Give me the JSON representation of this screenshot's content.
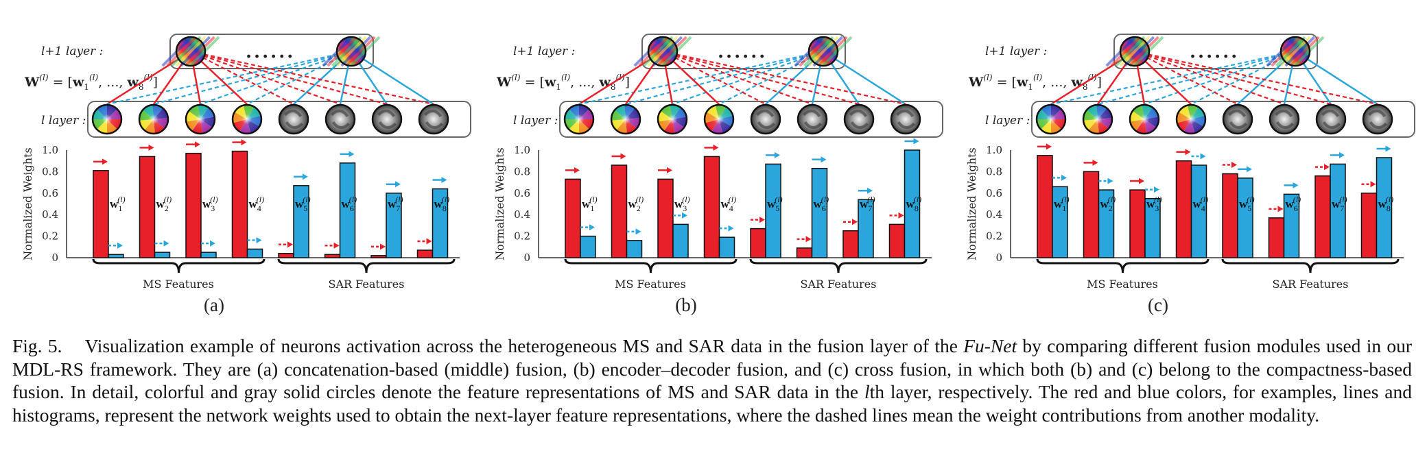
{
  "panels": [
    {
      "tag": "(a)",
      "red_values": [
        0.81,
        0.94,
        0.97,
        0.99,
        0.04,
        0.03,
        0.02,
        0.07
      ],
      "blue_values": [
        0.03,
        0.05,
        0.05,
        0.08,
        0.67,
        0.88,
        0.6,
        0.64
      ]
    },
    {
      "tag": "(b)",
      "red_values": [
        0.73,
        0.86,
        0.73,
        0.94,
        0.27,
        0.09,
        0.25,
        0.31
      ],
      "blue_values": [
        0.2,
        0.16,
        0.31,
        0.19,
        0.87,
        0.83,
        0.54,
        1.0
      ]
    },
    {
      "tag": "(c)",
      "red_values": [
        0.95,
        0.8,
        0.63,
        0.9,
        0.78,
        0.37,
        0.76,
        0.6
      ],
      "blue_values": [
        0.66,
        0.63,
        0.55,
        0.86,
        0.74,
        0.59,
        0.87,
        0.93
      ]
    }
  ],
  "labels": {
    "upper_layer": "l+1 layer :",
    "lower_layer": "l layer :",
    "dots": "......",
    "weight_eq": "W(l) = [w1(l), ..., w8(l)]",
    "ylabel": "Normalized Weights",
    "yticks": [
      "0",
      "0.2",
      "0.4",
      "0.6",
      "0.8",
      "1.0"
    ],
    "ms_features": "MS Features",
    "sar_features": "SAR Features",
    "weight_names": [
      "w1(l)",
      "w2(l)",
      "w3(l)",
      "w4(l)",
      "w5(l)",
      "w6(l)",
      "w7(l)",
      "w8(l)"
    ]
  },
  "colors": {
    "red": "#e8202a",
    "blue": "#2aa6dc"
  },
  "caption": {
    "fig": "Fig. 5.",
    "p1": "Visualization example of neurons activation across the heterogeneous MS and SAR data in the fusion layer of the",
    "net": "Fu-Net",
    "p2": "by comparing different fusion modules used in our MDL-RS framework. They are (a) concatenation-based (middle) fusion, (b) encoder–decoder fusion, and (c) cross fusion, in which both (b) and (c) belong to the compactness-based fusion. In detail, colorful and gray solid circles denote the feature representations of MS and SAR data in the",
    "lth": "l",
    "p3": "th layer, respectively. The red and blue colors, for examples, lines and histograms, represent the network weights used to obtain the next-layer feature representations, where the dashed lines mean the weight contributions from another modality."
  }
}
